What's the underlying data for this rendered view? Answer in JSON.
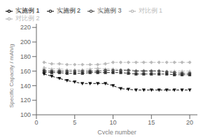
{
  "chart_data": {
    "type": "line",
    "xlabel": "Cycle number",
    "ylabel": "Specific Capacity / mAh/g",
    "xlim": [
      0,
      21
    ],
    "ylim": [
      100,
      225
    ],
    "xticks": [
      0,
      5,
      10,
      15,
      20
    ],
    "yticks": [
      100,
      120,
      140,
      160,
      180,
      200,
      220
    ],
    "grid": false,
    "legend": "upper left",
    "x": [
      1,
      2,
      3,
      4,
      5,
      6,
      7,
      8,
      9,
      10,
      11,
      12,
      13,
      14,
      15,
      16,
      17,
      18,
      19,
      20
    ],
    "series": [
      {
        "name": "对比例 2",
        "color": "#bbbbbb",
        "marker": "diamond",
        "line_style": "dashed",
        "values": [
          172,
          170,
          170,
          169,
          169,
          169,
          169,
          169,
          170,
          172,
          172,
          172,
          172,
          172,
          172,
          172,
          172,
          172,
          172,
          172
        ]
      },
      {
        "name": "对比例 1",
        "color": "#bbbbbb",
        "marker": "triangle",
        "line_style": "dashed",
        "values": [
          165,
          163,
          163,
          162,
          162,
          162,
          163,
          164,
          163,
          163,
          162,
          162,
          161,
          161,
          161,
          161,
          160,
          160,
          160,
          160
        ]
      },
      {
        "name": "实施例 3",
        "color": "#555555",
        "marker": "circle",
        "line_style": "dashed",
        "values": [
          161,
          160,
          160,
          160,
          160,
          160,
          160,
          160,
          161,
          161,
          161,
          161,
          160,
          160,
          160,
          160,
          159,
          158,
          157,
          157
        ]
      },
      {
        "name": "实施例 2",
        "color": "#333333",
        "marker": "square",
        "line_style": "dashed",
        "values": [
          159,
          158,
          158,
          157,
          157,
          157,
          158,
          158,
          158,
          158,
          158,
          157,
          156,
          156,
          156,
          156,
          156,
          155,
          155,
          155
        ]
      },
      {
        "name": "实施例 1",
        "color": "#111111",
        "marker": "triangle-down",
        "line_style": "dashed",
        "values": [
          156,
          153,
          150,
          147,
          145,
          143,
          143,
          143,
          143,
          140,
          136,
          135,
          134,
          134,
          134,
          134,
          134,
          134,
          134,
          134
        ]
      }
    ]
  }
}
